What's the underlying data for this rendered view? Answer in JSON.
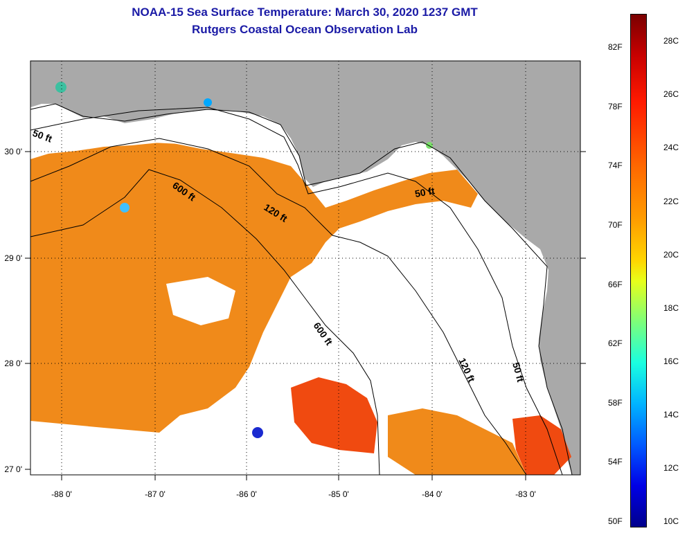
{
  "title": {
    "line1": "NOAA-15 Sea Surface Temperature:  March 30, 2020 1237 GMT",
    "line2": "Rutgers Coastal Ocean Observation Lab"
  },
  "map": {
    "longitude_labels": [
      "-88 0'",
      "-87 0'",
      "-86 0'",
      "-85 0'",
      "-84 0'",
      "-83 0'"
    ],
    "latitude_labels": [
      "30 0'",
      "29 0'",
      "28 0'",
      "27 0'"
    ],
    "contour_labels": [
      "50 ft",
      "600 ft",
      "120 ft",
      "50 ft",
      "600 ft",
      "120 ft",
      "50 ft"
    ],
    "colors": {
      "land": "#a9a9a9",
      "no_data": "#ffffff",
      "warm_sst": "#f08a1a",
      "hot_sst": "#f04a10"
    }
  },
  "colorbar": {
    "fahrenheit_labels": [
      "82F",
      "78F",
      "74F",
      "70F",
      "66F",
      "62F",
      "58F",
      "54F",
      "50F"
    ],
    "celsius_labels": [
      "28C",
      "26C",
      "24C",
      "22C",
      "20C",
      "18C",
      "16C",
      "14C",
      "12C",
      "10C"
    ]
  }
}
